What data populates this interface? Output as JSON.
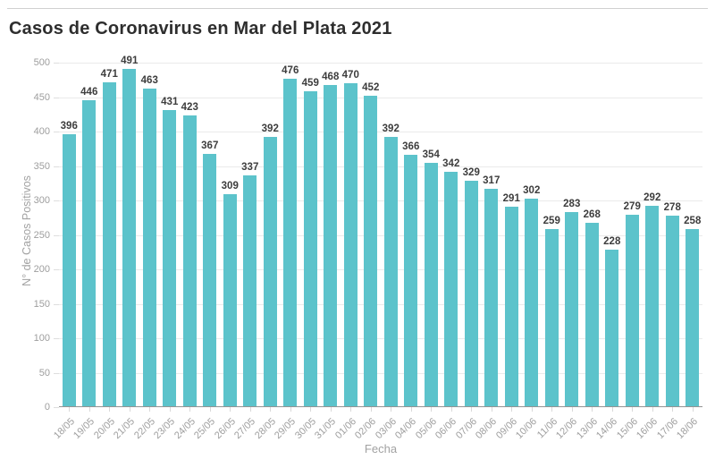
{
  "page": {
    "title": "Casos de Coronavirus en Mar del Plata 2021"
  },
  "colors": {
    "bar": "#5cc3cb",
    "grid": "#eaeaea",
    "axis_line": "#949494",
    "tick_text": "#9e9e9e",
    "value_text": "#3d3d3d",
    "title_text": "#2e2e2e"
  },
  "chart_data": {
    "type": "bar",
    "title": "Casos de Coronavirus en Mar del Plata 2021",
    "xlabel": "Fecha",
    "ylabel": "N° de Casos Positivos",
    "categories": [
      "18/05",
      "19/05",
      "20/05",
      "21/05",
      "22/05",
      "23/05",
      "24/05",
      "25/05",
      "26/05",
      "27/05",
      "28/05",
      "29/05",
      "30/05",
      "31/05",
      "01/06",
      "02/06",
      "03/06",
      "04/06",
      "05/06",
      "06/06",
      "07/06",
      "08/06",
      "09/06",
      "10/06",
      "11/06",
      "12/06",
      "13/06",
      "14/06",
      "15/06",
      "16/06",
      "17/06",
      "18/06"
    ],
    "values": [
      396,
      446,
      471,
      491,
      463,
      431,
      423,
      367,
      309,
      337,
      392,
      476,
      459,
      468,
      470,
      452,
      392,
      366,
      354,
      342,
      329,
      317,
      291,
      302,
      259,
      283,
      268,
      228,
      279,
      292,
      278,
      258
    ],
    "ylim": [
      0,
      500
    ],
    "yticks": [
      0,
      50,
      100,
      150,
      200,
      250,
      300,
      350,
      400,
      450,
      500
    ],
    "grid": true,
    "legend": "none",
    "value_labels": true
  }
}
